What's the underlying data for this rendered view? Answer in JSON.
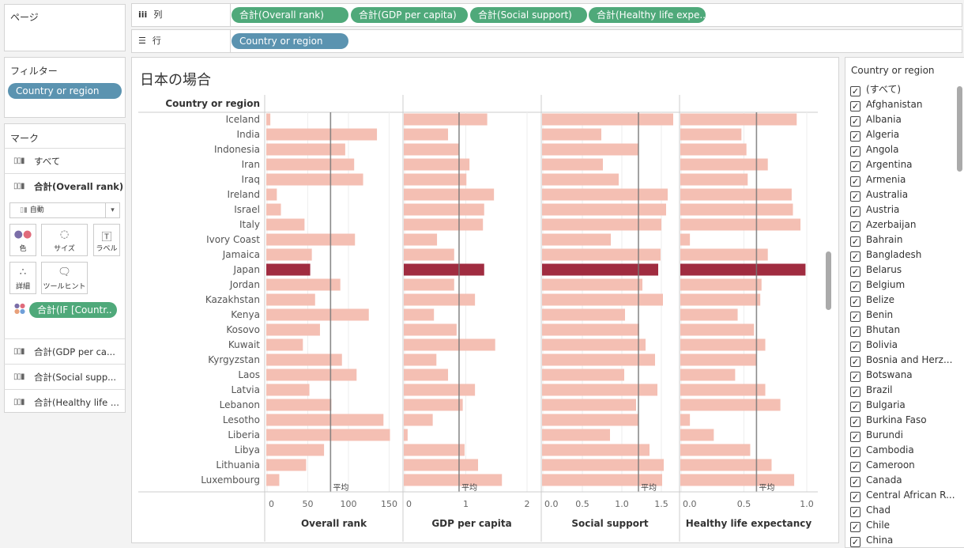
{
  "pages_panel": {
    "title": "ページ"
  },
  "columns_shelf": {
    "label": "列",
    "icon": "columns-icon",
    "pills": [
      "合計(Overall rank)",
      "合計(GDP per capita)",
      "合計(Social support)",
      "合計(Healthy life expe.."
    ]
  },
  "rows_shelf": {
    "label": "行",
    "icon": "rows-icon",
    "pills": [
      "Country or region"
    ]
  },
  "filters_panel": {
    "title": "フィルター",
    "pills": [
      "Country or region"
    ]
  },
  "marks_panel": {
    "title": "マーク",
    "all": "すべて",
    "active": "合計(Overall rank)",
    "mark_type": "自動",
    "buttons": {
      "color": "色",
      "size": "サイズ",
      "label": "ラベル",
      "detail": "詳細",
      "tooltip": "ツールヒント"
    },
    "color_pill": "合計(IF [Countr..",
    "others": [
      "合計(GDP per ca...",
      "合計(Social supp...",
      "合計(Healthy life ..."
    ]
  },
  "viz": {
    "title": "日本の場合",
    "row_header": "Country or region",
    "avg_label": "平均",
    "highlight_color": "#a02c40",
    "bar_color": "#f4bfb3"
  },
  "chart_data": {
    "type": "bar",
    "orientation": "horizontal",
    "categories": [
      "Iceland",
      "India",
      "Indonesia",
      "Iran",
      "Iraq",
      "Ireland",
      "Israel",
      "Italy",
      "Ivory Coast",
      "Jamaica",
      "Japan",
      "Jordan",
      "Kazakhstan",
      "Kenya",
      "Kosovo",
      "Kuwait",
      "Kyrgyzstan",
      "Laos",
      "Latvia",
      "Lebanon",
      "Lesotho",
      "Liberia",
      "Libya",
      "Lithuania",
      "Luxembourg"
    ],
    "highlight": "Japan",
    "series": [
      {
        "name": "Overall rank",
        "xlim": [
          0,
          165
        ],
        "ticks": [
          "0",
          "50",
          "100",
          "150"
        ],
        "tickvals": [
          0,
          50,
          100,
          150
        ],
        "average": 78,
        "values": [
          4,
          135,
          96,
          107,
          118,
          12,
          17,
          46,
          108,
          55,
          53,
          90,
          59,
          125,
          65,
          44,
          92,
          110,
          52,
          79,
          143,
          151,
          70,
          48,
          15
        ]
      },
      {
        "name": "GDP per capita",
        "xlim": [
          0,
          2.2
        ],
        "ticks": [
          "0",
          "1",
          "2"
        ],
        "tickvals": [
          0,
          1,
          2
        ],
        "average": 0.89,
        "values": [
          1.35,
          0.71,
          0.89,
          1.06,
          1.01,
          1.46,
          1.3,
          1.28,
          0.53,
          0.81,
          1.3,
          0.81,
          1.15,
          0.48,
          0.85,
          1.48,
          0.52,
          0.71,
          1.15,
          0.95,
          0.46,
          0.05,
          0.98,
          1.2,
          1.59
        ]
      },
      {
        "name": "Social support",
        "xlim": [
          0,
          1.7
        ],
        "ticks": [
          "0.0",
          "0.5",
          "1.0",
          "1.5"
        ],
        "tickvals": [
          0,
          0.5,
          1,
          1.5
        ],
        "average": 1.21,
        "values": [
          1.65,
          0.74,
          1.21,
          0.76,
          0.96,
          1.58,
          1.56,
          1.5,
          0.86,
          1.49,
          1.46,
          1.26,
          1.52,
          1.04,
          1.22,
          1.3,
          1.42,
          1.03,
          1.45,
          1.18,
          1.21,
          0.85,
          1.35,
          1.53,
          1.51
        ]
      },
      {
        "name": "Healthy life expectancy",
        "xlim": [
          0,
          1.09
        ],
        "ticks": [
          "0.0",
          "0.5",
          "1.0"
        ],
        "tickvals": [
          0,
          0.5,
          1
        ],
        "average": 0.6,
        "values": [
          0.92,
          0.48,
          0.52,
          0.69,
          0.53,
          0.88,
          0.89,
          0.95,
          0.07,
          0.69,
          0.99,
          0.64,
          0.63,
          0.45,
          0.58,
          0.67,
          0.6,
          0.43,
          0.67,
          0.79,
          0.07,
          0.26,
          0.55,
          0.72,
          0.9
        ]
      }
    ],
    "grid": true
  },
  "filter_card": {
    "title": "Country or region",
    "items": [
      "(すべて)",
      "Afghanistan",
      "Albania",
      "Algeria",
      "Angola",
      "Argentina",
      "Armenia",
      "Australia",
      "Austria",
      "Azerbaijan",
      "Bahrain",
      "Bangladesh",
      "Belarus",
      "Belgium",
      "Belize",
      "Benin",
      "Bhutan",
      "Bolivia",
      "Bosnia and Herz...",
      "Botswana",
      "Brazil",
      "Bulgaria",
      "Burkina Faso",
      "Burundi",
      "Cambodia",
      "Cameroon",
      "Canada",
      "Central African R...",
      "Chad",
      "Chile",
      "China"
    ],
    "checked": true
  }
}
